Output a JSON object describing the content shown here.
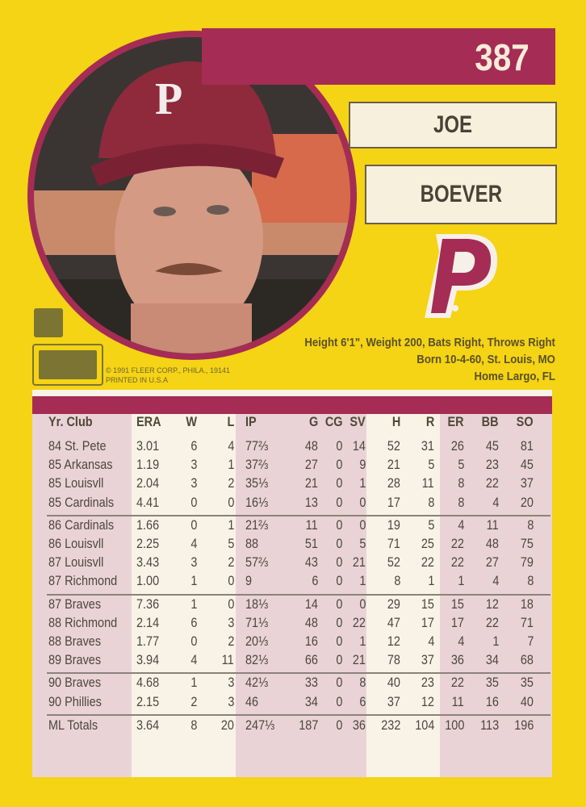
{
  "card": {
    "number": "387",
    "first_name": "JOE",
    "last_name": "BOEVER",
    "team_logo": "phillies-p-logo",
    "bio": [
      "Height 6'1\", Weight 200, Bats Right, Throws Right",
      "Born 10-4-60, St. Louis, MO",
      "Home Largo, FL"
    ],
    "copyright": [
      "© 1991 FLEER CORP., PHILA., 19141",
      "PRINTED IN U.S.A"
    ],
    "colors": {
      "background": "#f5d315",
      "accent": "#a52c55",
      "panel": "#f8f3e6"
    }
  },
  "stats": {
    "headers": [
      "Yr. Club",
      "ERA",
      "W",
      "L",
      "IP",
      "G",
      "CG",
      "SV",
      "H",
      "R",
      "ER",
      "BB",
      "SO"
    ],
    "groups": [
      [
        [
          "84 St. Pete",
          "3.01",
          "6",
          "4",
          "77⅔",
          "48",
          "0",
          "14",
          "52",
          "31",
          "26",
          "45",
          "81"
        ],
        [
          "85 Arkansas",
          "1.19",
          "3",
          "1",
          "37⅔",
          "27",
          "0",
          "9",
          "21",
          "5",
          "5",
          "23",
          "45"
        ],
        [
          "85 Louisvll",
          "2.04",
          "3",
          "2",
          "35⅓",
          "21",
          "0",
          "1",
          "28",
          "11",
          "8",
          "22",
          "37"
        ],
        [
          "85 Cardinals",
          "4.41",
          "0",
          "0",
          "16⅓",
          "13",
          "0",
          "0",
          "17",
          "8",
          "8",
          "4",
          "20"
        ]
      ],
      [
        [
          "86 Cardinals",
          "1.66",
          "0",
          "1",
          "21⅔",
          "11",
          "0",
          "0",
          "19",
          "5",
          "4",
          "11",
          "8"
        ],
        [
          "86 Louisvll",
          "2.25",
          "4",
          "5",
          "88",
          "51",
          "0",
          "5",
          "71",
          "25",
          "22",
          "48",
          "75"
        ],
        [
          "87 Louisvll",
          "3.43",
          "3",
          "2",
          "57⅔",
          "43",
          "0",
          "21",
          "52",
          "22",
          "22",
          "27",
          "79"
        ],
        [
          "87 Richmond",
          "1.00",
          "1",
          "0",
          "9",
          "6",
          "0",
          "1",
          "8",
          "1",
          "1",
          "4",
          "8"
        ]
      ],
      [
        [
          "87 Braves",
          "7.36",
          "1",
          "0",
          "18⅓",
          "14",
          "0",
          "0",
          "29",
          "15",
          "15",
          "12",
          "18"
        ],
        [
          "88 Richmond",
          "2.14",
          "6",
          "3",
          "71⅓",
          "48",
          "0",
          "22",
          "47",
          "17",
          "17",
          "22",
          "71"
        ],
        [
          "88 Braves",
          "1.77",
          "0",
          "2",
          "20⅓",
          "16",
          "0",
          "1",
          "12",
          "4",
          "4",
          "1",
          "7"
        ],
        [
          "89 Braves",
          "3.94",
          "4",
          "11",
          "82⅓",
          "66",
          "0",
          "21",
          "78",
          "37",
          "36",
          "34",
          "68"
        ]
      ],
      [
        [
          "90 Braves",
          "4.68",
          "1",
          "3",
          "42⅓",
          "33",
          "0",
          "8",
          "40",
          "23",
          "22",
          "35",
          "35"
        ],
        [
          "90 Phillies",
          "2.15",
          "2",
          "3",
          "46",
          "34",
          "0",
          "6",
          "37",
          "12",
          "11",
          "16",
          "40"
        ]
      ]
    ],
    "totals": [
      "ML Totals",
      "3.64",
      "8",
      "20",
      "247⅓",
      "187",
      "0",
      "36",
      "232",
      "104",
      "100",
      "113",
      "196"
    ]
  }
}
